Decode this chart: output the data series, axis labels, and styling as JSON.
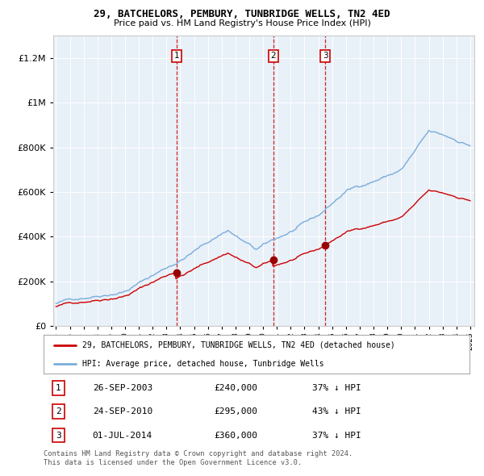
{
  "title": "29, BATCHELORS, PEMBURY, TUNBRIDGE WELLS, TN2 4ED",
  "subtitle": "Price paid vs. HM Land Registry's House Price Index (HPI)",
  "legend_label_red": "29, BATCHELORS, PEMBURY, TUNBRIDGE WELLS, TN2 4ED (detached house)",
  "legend_label_blue": "HPI: Average price, detached house, Tunbridge Wells",
  "footer_line1": "Contains HM Land Registry data © Crown copyright and database right 2024.",
  "footer_line2": "This data is licensed under the Open Government Licence v3.0.",
  "sales": [
    {
      "num": 1,
      "date": "26-SEP-2003",
      "price": "£240,000",
      "pct": "37% ↓ HPI",
      "year": 2003.73,
      "marker_y": 240000
    },
    {
      "num": 2,
      "date": "24-SEP-2010",
      "price": "£295,000",
      "pct": "43% ↓ HPI",
      "year": 2010.73,
      "marker_y": 295000
    },
    {
      "num": 3,
      "date": "01-JUL-2014",
      "price": "£360,000",
      "pct": "37% ↓ HPI",
      "year": 2014.5,
      "marker_y": 360000
    }
  ],
  "ylim": [
    0,
    1300000
  ],
  "xlim": [
    1994.8,
    2025.3
  ],
  "plot_bg": "#e8f0f8",
  "grid_color": "#ffffff"
}
